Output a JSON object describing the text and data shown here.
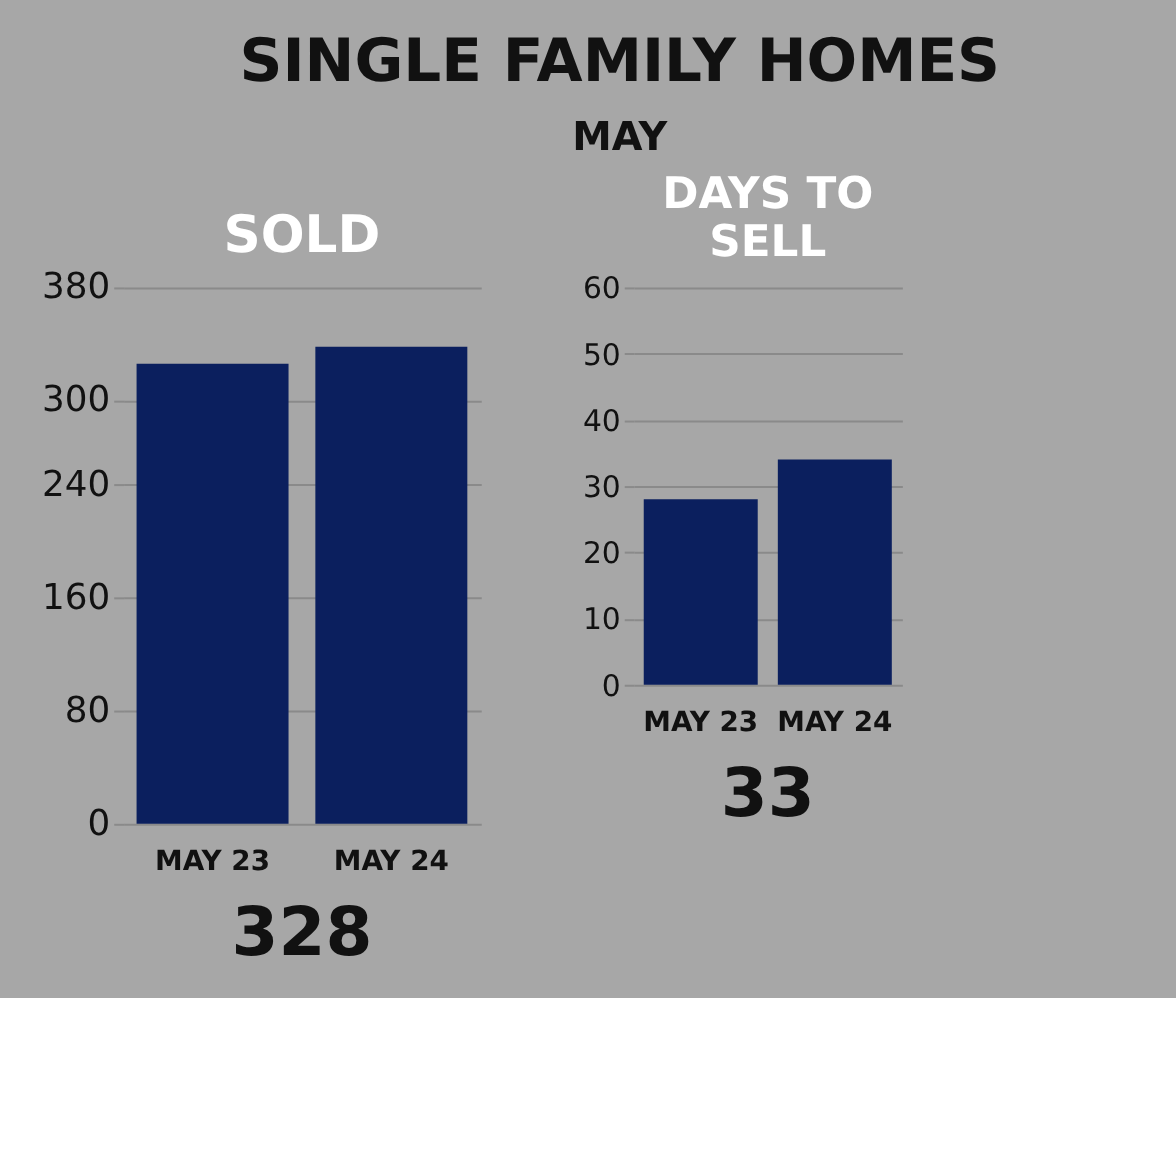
{
  "chart_data": [
    {
      "type": "other",
      "title": "SINGLE FAMILY HOMES",
      "subtitle": "MAY"
    },
    {
      "type": "bar",
      "title": "SOLD",
      "categories": [
        "MAY 23",
        "MAY 24"
      ],
      "values": [
        326,
        338
      ],
      "color": "#0b1f5e",
      "ylim": [
        0,
        380
      ],
      "yticks": [
        0,
        80,
        160,
        240,
        300,
        380
      ],
      "grid": "y",
      "annotations": [
        "328"
      ]
    },
    {
      "type": "bar",
      "title": "DAYS TO SELL",
      "categories": [
        "MAY 23",
        "MAY 24"
      ],
      "values": [
        28,
        34
      ],
      "color": "#0b1f5e",
      "ylim": [
        0,
        60
      ],
      "yticks": [
        0,
        10,
        20,
        30,
        40,
        50,
        60
      ],
      "grid": "y",
      "annotations": [
        "33"
      ]
    }
  ]
}
